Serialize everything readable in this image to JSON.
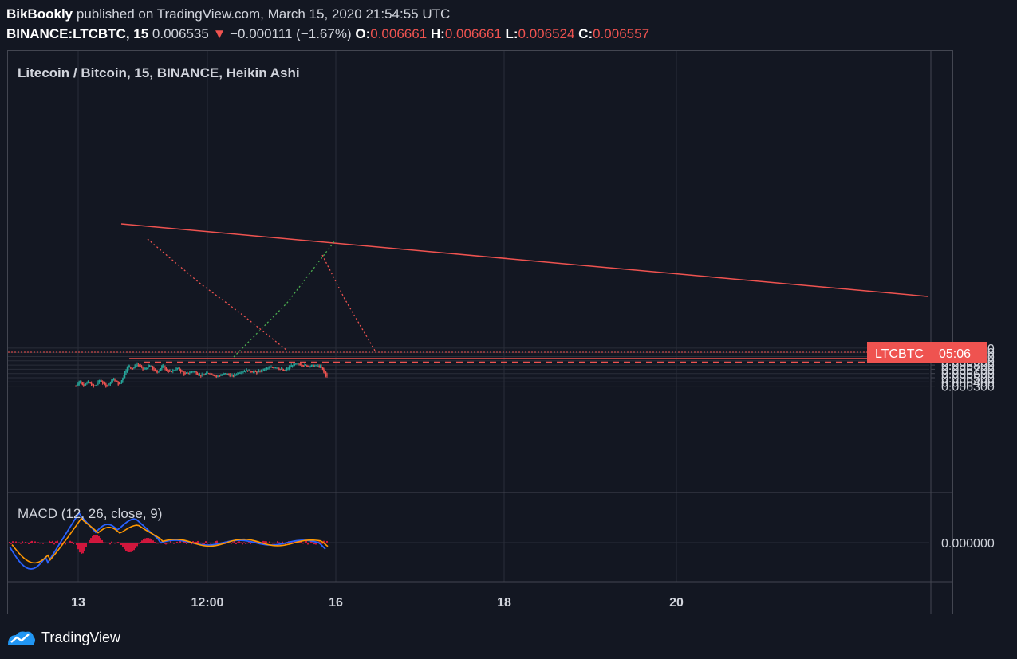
{
  "header": {
    "author": "BikBookly",
    "published_text": " published on TradingView.com, March 15, 2020 21:54:55 UTC",
    "symbol": "BINANCE:LTCBTC, 15",
    "price": "0.006535",
    "change": "−0.000111 (−1.67%)",
    "open_label": "O:",
    "open": "0.006661",
    "high_label": "H:",
    "high": "0.006661",
    "low_label": "L:",
    "low": "0.006524",
    "close_label": "C:",
    "close": "0.006557"
  },
  "chart_title": "Litecoin / Bitcoin, 15, BINANCE, Heikin Ashi",
  "price_tag": {
    "label": "LTCBTC",
    "time": "05:06"
  },
  "macd_label": "MACD (12, 26, close, 9)",
  "brand": "TradingView",
  "colors": {
    "up": "#26a69a",
    "down": "#ef5350",
    "macd": "#2962ff",
    "signal": "#ff9800",
    "hist": "#ff1744",
    "background": "#131722"
  },
  "chart_data": [
    {
      "type": "candlestick",
      "title": "Litecoin / Bitcoin, 15, BINANCE, Heikin Ashi",
      "x_ticks": [
        "13",
        "12:00",
        "16",
        "18",
        "20"
      ],
      "y_ticks": [
        "0.006300",
        "0.006400",
        "0.006500",
        "0.006600",
        "0.006700",
        "0.006800",
        "0.006900",
        "0.007000",
        "0.007100",
        "0.007200"
      ],
      "ylim": [
        0.00622,
        0.00727
      ],
      "grid": true,
      "last_price": 0.006557,
      "annotations": {
        "resistance_dashed": 0.00687,
        "support_line": 0.006545,
        "descending_trendline": [
          [
            0.1,
            0.00686
          ],
          [
            1.0,
            0.00669
          ]
        ],
        "ascending_dotted": [
          [
            0.0,
            0.00654
          ],
          [
            0.05,
            0.00682
          ]
        ]
      }
    },
    {
      "type": "line",
      "title": "MACD (12, 26, close, 9)",
      "y_ticks": [
        "0.000000"
      ],
      "series": [
        {
          "name": "MACD",
          "color": "#2962ff"
        },
        {
          "name": "Signal",
          "color": "#ff9800"
        },
        {
          "name": "Histogram",
          "color": "#ff1744"
        }
      ]
    }
  ]
}
